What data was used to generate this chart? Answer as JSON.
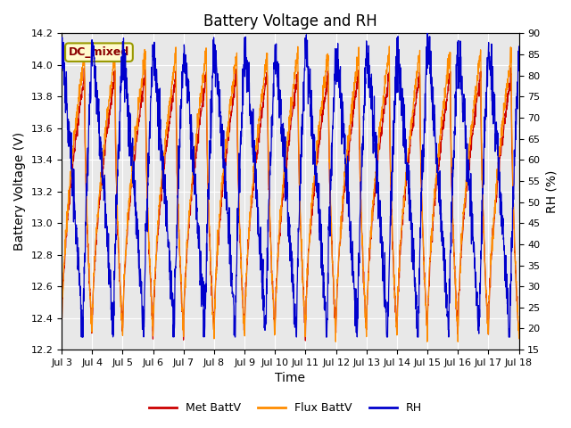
{
  "title": "Battery Voltage and RH",
  "xlabel": "Time",
  "ylabel_left": "Battery Voltage (V)",
  "ylabel_right": "RH (%)",
  "ylim_left": [
    12.2,
    14.2
  ],
  "ylim_right": [
    15,
    90
  ],
  "yticks_left": [
    12.2,
    12.4,
    12.6,
    12.8,
    13.0,
    13.2,
    13.4,
    13.6,
    13.8,
    14.0,
    14.2
  ],
  "yticks_right": [
    15,
    20,
    25,
    30,
    35,
    40,
    45,
    50,
    55,
    60,
    65,
    70,
    75,
    80,
    85,
    90
  ],
  "xtick_labels": [
    "Jul 3",
    "Jul 4",
    "Jul 5",
    "Jul 6",
    "Jul 7",
    "Jul 8",
    "Jul 9",
    "Jul 10",
    "Jul 11",
    "Jul 12",
    "Jul 13",
    "Jul 14",
    "Jul 15",
    "Jul 16",
    "Jul 17",
    "Jul 18"
  ],
  "annotation_text": "DC_mixed",
  "annotation_color": "#8B0000",
  "annotation_bg": "#FFFACD",
  "annotation_border": "#999900",
  "color_met": "#CC0000",
  "color_flux": "#FF8C00",
  "color_rh": "#0000CC",
  "legend_labels": [
    "Met BattV",
    "Flux BattV",
    "RH"
  ],
  "bg_color": "#E8E8E8",
  "title_fontsize": 12,
  "label_fontsize": 10,
  "tick_fontsize": 8,
  "legend_fontsize": 9,
  "n_days": 15,
  "seed": 42,
  "figsize": [
    6.4,
    4.8
  ],
  "dpi": 100
}
